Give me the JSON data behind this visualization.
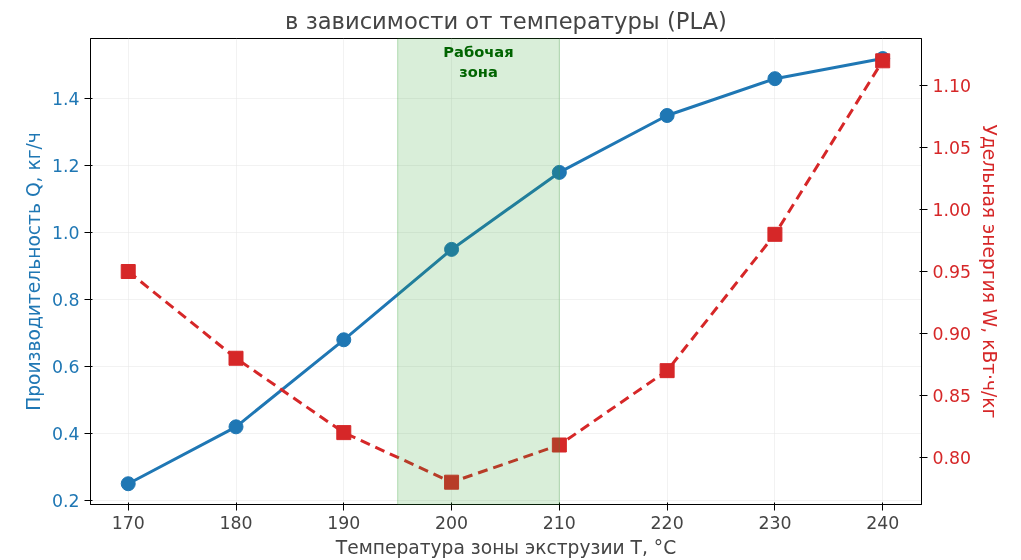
{
  "chart_data": {
    "type": "line",
    "title": "в зависимости от температуры (PLA)",
    "xlabel": "Температура зоны экструзии T, °C",
    "ylabel": "Производительность Q, кг/ч",
    "y2label": "Удельная энергия W, кВт·ч/кг",
    "x": [
      170,
      180,
      190,
      200,
      210,
      220,
      230,
      240
    ],
    "series": [
      {
        "color": "#1f77b4",
        "values": [
          0.25,
          0.42,
          0.68,
          0.95,
          1.18,
          1.35,
          1.46,
          1.52
        ],
        "marker": "circle",
        "line_style": "solid"
      },
      {
        "color": "#d62728",
        "values": [
          0.95,
          0.88,
          0.82,
          0.78,
          0.81,
          0.87,
          0.98,
          1.12
        ],
        "marker": "square",
        "line_style": "dashed",
        "axis": "y2"
      }
    ],
    "xlim": [
      166.5,
      243.6
    ],
    "xticks": [
      170,
      180,
      190,
      200,
      210,
      220,
      230,
      240
    ],
    "ylim": [
      0.188,
      1.58
    ],
    "yticks": [
      0.2,
      0.4,
      0.6,
      0.8,
      {
        "value": 1,
        "label": "1.0"
      },
      1.2,
      1.4
    ],
    "y2lim": [
      0.762,
      1.138
    ],
    "y2ticks": [
      {
        "value": 0.8,
        "label": "0.80"
      },
      0.85,
      {
        "value": 0.9,
        "label": "0.90"
      },
      0.95,
      {
        "value": 1,
        "label": "1.00"
      },
      1.05,
      {
        "value": 1.1,
        "label": "1.10"
      }
    ],
    "bands": [
      {
        "axis": "x",
        "from": 195,
        "to": 210,
        "label": "Рабочая\nзона",
        "color": "#2ca02c"
      }
    ],
    "grid": true
  }
}
